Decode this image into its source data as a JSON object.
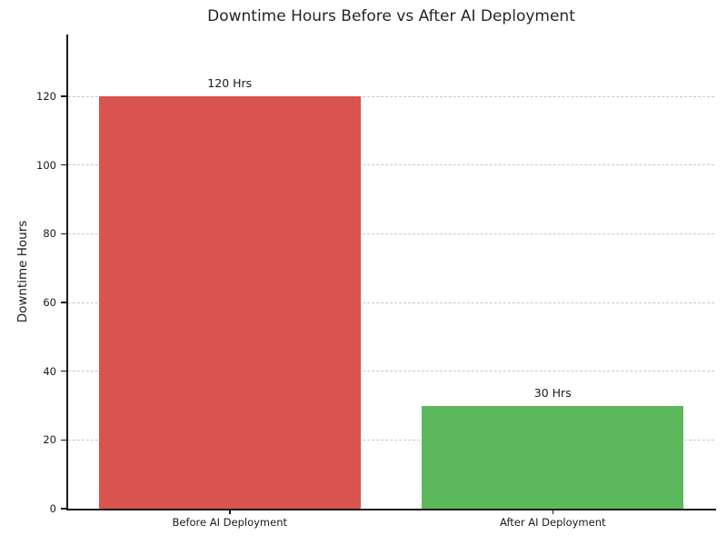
{
  "chart_data": {
    "type": "bar",
    "title": "Downtime Hours Before vs After AI Deployment",
    "xlabel": "",
    "ylabel": "Downtime Hours",
    "categories": [
      "Before AI Deployment",
      "After AI Deployment"
    ],
    "values": [
      120,
      30
    ],
    "bar_labels": [
      "120 Hrs",
      "30 Hrs"
    ],
    "bar_colors": [
      "#d9534f",
      "#5cb85c"
    ],
    "yticks": [
      0,
      20,
      40,
      60,
      80,
      100,
      120
    ],
    "ylim": [
      0,
      138
    ],
    "grid": "horizontal-dashed",
    "gridline_color": "#c9c9c9",
    "legend": "none",
    "background_color": "#ffffff"
  }
}
